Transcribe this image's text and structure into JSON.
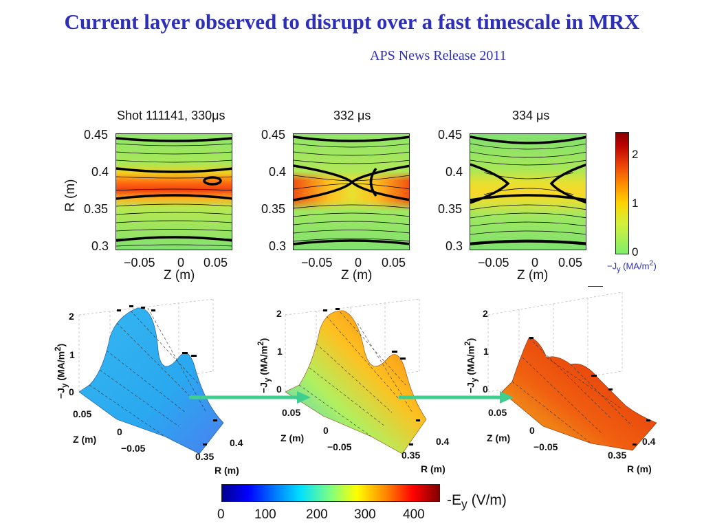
{
  "slide": {
    "title": "Current layer observed to disrupt over a fast timescale in MRX",
    "subtitle": "APS News Release 2011"
  },
  "contour_panels": [
    {
      "title": "Shot 111141, 330μs"
    },
    {
      "title": "332 μs"
    },
    {
      "title": "334 μs"
    }
  ],
  "contour_axes": {
    "r_ticks": [
      "0.45",
      "0.4",
      "0.35",
      "0.3"
    ],
    "z_ticks": [
      "−0.05",
      "0",
      "0.05"
    ],
    "r_label": "R (m)",
    "z_label": "Z (m)"
  },
  "jy_colorbar": {
    "ticks": [
      "2",
      "1",
      "0"
    ],
    "label": "−J",
    "label_sub": "y",
    "label_unit": " (MA/m",
    "label_sup": "2",
    "label_end": ")"
  },
  "surface_axes": {
    "z_ticks": [
      "2",
      "1",
      "0"
    ],
    "z_label": "−J",
    "z_label_sub": "y",
    "z_label_unit": " (MA/m",
    "z_label_sup": "2",
    "z_label_end": ")",
    "zpos_ticks": [
      "0.05",
      "0",
      "−0.05"
    ],
    "zpos_label": "Z (m)",
    "r_ticks": [
      "0.4",
      "0.35"
    ],
    "r_label": "R (m)"
  },
  "ey_colorbar": {
    "ticks": [
      "0",
      "100",
      "200",
      "300",
      "400"
    ],
    "label": "-E",
    "label_sub": "y",
    "label_unit": " (V/m)"
  },
  "colors": {
    "title": "#2d2fb8",
    "arrow": "#3ecf8e"
  }
}
